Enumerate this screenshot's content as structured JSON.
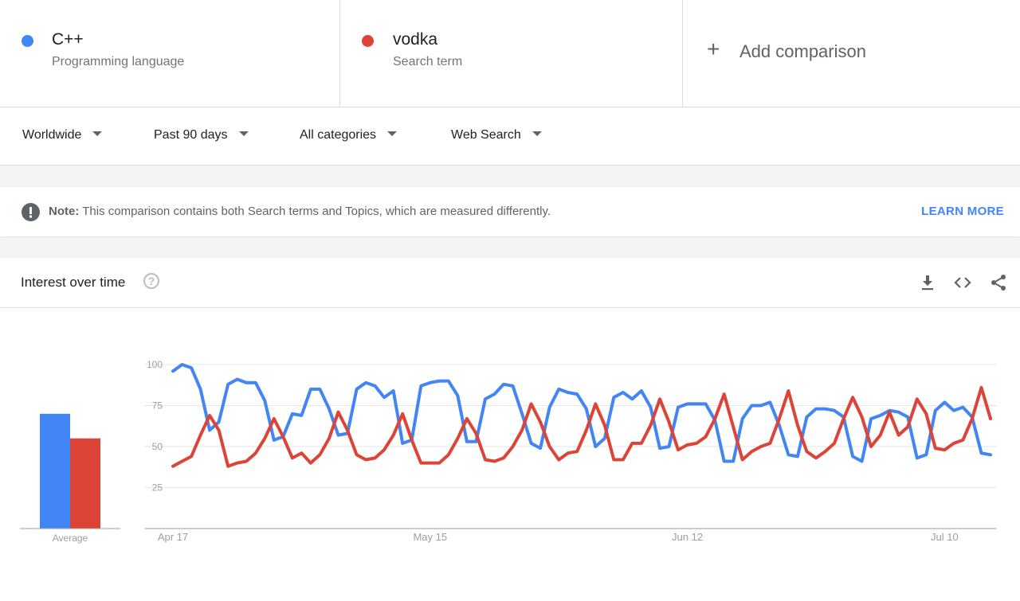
{
  "terms": [
    {
      "name": "C++",
      "type": "Programming language",
      "color": "#4285f4"
    },
    {
      "name": "vodka",
      "type": "Search term",
      "color": "#db4437"
    }
  ],
  "add_comparison": {
    "plus": "+",
    "label": "Add comparison"
  },
  "filters": {
    "region": "Worldwide",
    "period": "Past 90 days",
    "category": "All categories",
    "property": "Web Search"
  },
  "note": {
    "label": "Note:",
    "text": "This comparison contains both Search terms and Topics, which are measured differently.",
    "action": "LEARN MORE"
  },
  "card": {
    "title": "Interest over time",
    "help": "?",
    "icons": [
      "download-icon",
      "embed-icon",
      "share-icon"
    ]
  },
  "chart_data": {
    "type": "line",
    "y_ticks": [
      25,
      50,
      75,
      100
    ],
    "ylim": [
      0,
      100
    ],
    "x_tick_labels": [
      "Apr 17",
      "May 15",
      "Jun 12",
      "Jul 10"
    ],
    "x_tick_index": [
      0,
      28,
      56,
      84
    ],
    "average": {
      "label": "Average",
      "values": [
        70,
        55
      ]
    },
    "series": [
      {
        "name": "C++",
        "color": "#4285f4",
        "values": [
          96,
          100,
          98,
          85,
          60,
          65,
          88,
          91,
          89,
          89,
          78,
          54,
          56,
          70,
          69,
          85,
          85,
          73,
          57,
          58,
          85,
          89,
          87,
          80,
          84,
          52,
          54,
          87,
          89,
          90,
          90,
          81,
          53,
          53,
          79,
          82,
          88,
          87,
          70,
          52,
          49,
          74,
          85,
          83,
          82,
          73,
          50,
          55,
          80,
          83,
          79,
          84,
          74,
          49,
          50,
          74,
          76,
          76,
          76,
          66,
          41,
          41,
          67,
          75,
          75,
          77,
          63,
          45,
          44,
          68,
          73,
          73,
          72,
          68,
          44,
          41,
          67,
          69,
          72,
          71,
          68,
          43,
          45,
          72,
          77,
          72,
          74,
          68,
          46,
          45
        ]
      },
      {
        "name": "vodka",
        "color": "#db4437",
        "values": [
          38,
          41,
          44,
          57,
          69,
          60,
          38,
          40,
          41,
          46,
          55,
          67,
          56,
          43,
          46,
          40,
          45,
          55,
          71,
          60,
          45,
          42,
          43,
          48,
          57,
          70,
          54,
          40,
          40,
          40,
          45,
          55,
          67,
          58,
          42,
          41,
          43,
          50,
          60,
          76,
          65,
          50,
          42,
          46,
          47,
          60,
          76,
          63,
          42,
          42,
          52,
          52,
          63,
          79,
          65,
          48,
          51,
          52,
          56,
          67,
          82,
          62,
          42,
          47,
          50,
          52,
          67,
          84,
          63,
          47,
          43,
          47,
          52,
          67,
          80,
          68,
          50,
          57,
          71,
          57,
          62,
          79,
          70,
          49,
          48,
          52,
          54,
          67,
          86,
          67
        ]
      }
    ]
  }
}
